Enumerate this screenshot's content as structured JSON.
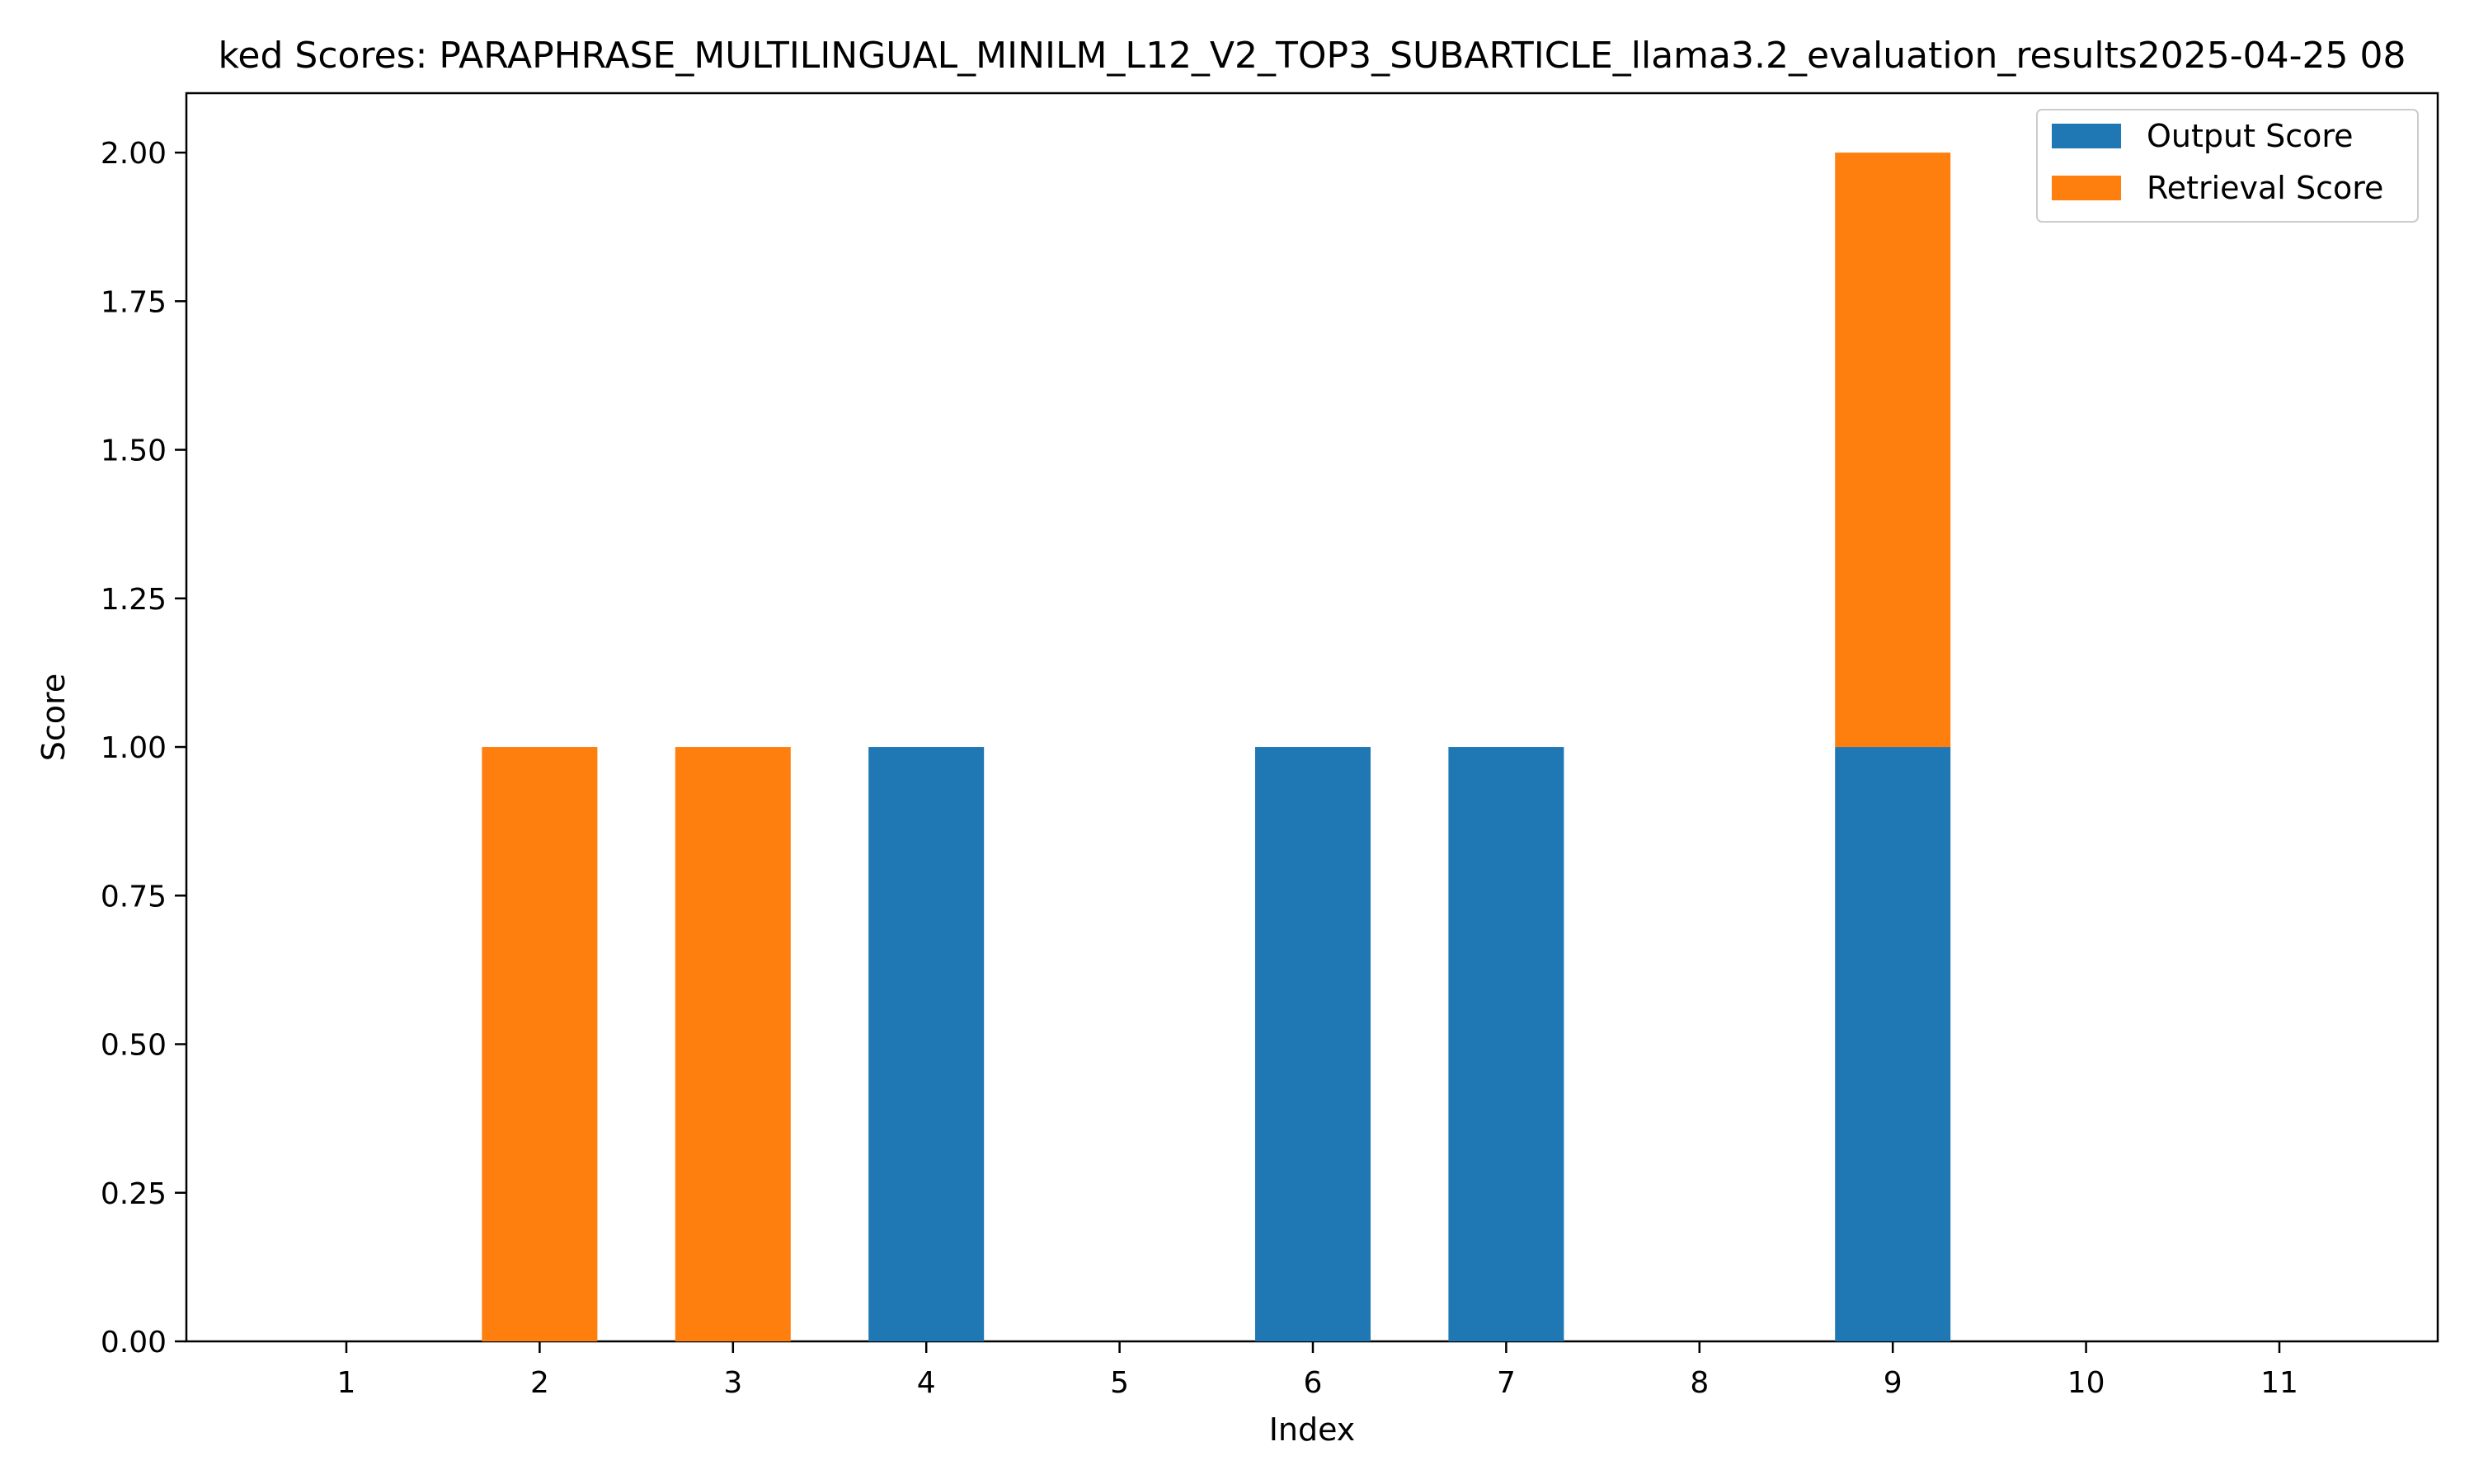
{
  "chart_data": {
    "type": "bar",
    "stacked": true,
    "title": "ked Scores: PARAPHRASE_MULTILINGUAL_MINILM_L12_V2_TOP3_SUBARTICLE_llama3.2_evaluation_results2025-04-25 08",
    "xlabel": "Index",
    "ylabel": "Score",
    "categories": [
      "1",
      "2",
      "3",
      "4",
      "5",
      "6",
      "7",
      "8",
      "9",
      "10",
      "11"
    ],
    "ylim": [
      0,
      2.1
    ],
    "yticks": [
      "0.00",
      "0.25",
      "0.50",
      "0.75",
      "1.00",
      "1.25",
      "1.50",
      "1.75",
      "2.00"
    ],
    "grid": false,
    "legend_position": "top-right",
    "series": [
      {
        "name": "Output Score",
        "color": "#1f77b4",
        "values": [
          0,
          0,
          0,
          1,
          0,
          1,
          1,
          0,
          1,
          0,
          0
        ]
      },
      {
        "name": "Retrieval Score",
        "color": "#ff7f0e",
        "values": [
          0,
          1,
          1,
          0,
          0,
          0,
          0,
          0,
          1,
          0,
          0
        ]
      }
    ]
  }
}
